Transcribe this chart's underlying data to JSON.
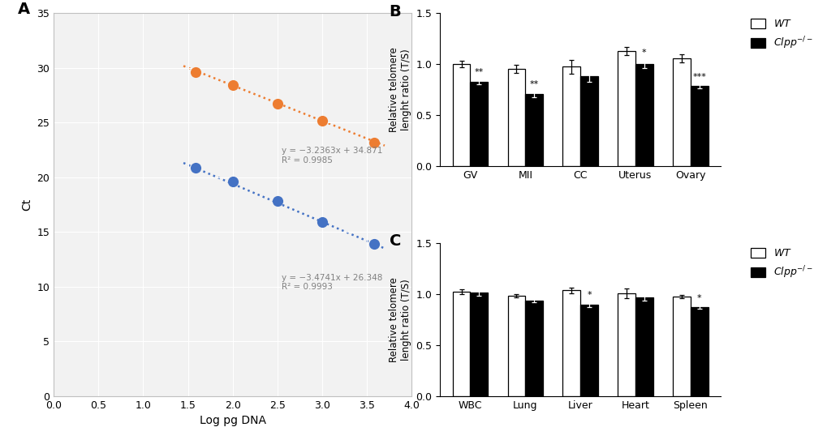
{
  "panel_A": {
    "blue_x": [
      1.585,
      2.0,
      2.5,
      3.0,
      3.585
    ],
    "blue_y": [
      20.85,
      19.6,
      17.8,
      15.9,
      13.9
    ],
    "orange_x": [
      1.585,
      2.0,
      2.5,
      3.0,
      3.585
    ],
    "orange_y": [
      29.65,
      28.45,
      26.7,
      25.2,
      23.2
    ],
    "blue_color": "#4472C4",
    "orange_color": "#ED7D31",
    "blue_eq": "y = −3.4741x + 26.348",
    "blue_r2": "R² = 0.9993",
    "orange_eq": "y = −3.2363x + 34.871",
    "orange_r2": "R² = 0.9985",
    "xlabel": "Log pg DNA",
    "ylabel": "Ct",
    "xlim": [
      0,
      4
    ],
    "ylim": [
      0,
      35
    ],
    "xticks": [
      0,
      0.5,
      1,
      1.5,
      2,
      2.5,
      3,
      3.5,
      4
    ],
    "yticks": [
      0,
      5,
      10,
      15,
      20,
      25,
      30,
      35
    ],
    "bg_color": "#f2f2f2",
    "grid_color": "white"
  },
  "panel_B": {
    "categories": [
      "GV",
      "MII",
      "CC",
      "Uterus",
      "Ovary"
    ],
    "wt_means": [
      1.0,
      0.955,
      0.975,
      1.13,
      1.055
    ],
    "wt_errs": [
      0.03,
      0.04,
      0.065,
      0.04,
      0.04
    ],
    "ko_means": [
      0.83,
      0.705,
      0.882,
      1.0,
      0.785
    ],
    "ko_errs": [
      0.025,
      0.03,
      0.055,
      0.04,
      0.022
    ],
    "sig_labels": [
      "**",
      "**",
      "",
      "*",
      "***"
    ],
    "ylabel": "Relative telomere\nlenght ratio (T/S)",
    "ylim": [
      0.0,
      1.5
    ],
    "yticks": [
      0.0,
      0.5,
      1.0,
      1.5
    ]
  },
  "panel_C": {
    "categories": [
      "WBC",
      "Lung",
      "Liver",
      "Heart",
      "Spleen"
    ],
    "wt_means": [
      1.02,
      0.984,
      1.035,
      1.005,
      0.975
    ],
    "wt_errs": [
      0.025,
      0.015,
      0.03,
      0.045,
      0.018
    ],
    "ko_means": [
      1.015,
      0.935,
      0.895,
      0.963,
      0.87
    ],
    "ko_errs": [
      0.03,
      0.018,
      0.022,
      0.032,
      0.018
    ],
    "sig_labels": [
      "",
      "",
      "*",
      "",
      "*"
    ],
    "ylabel": "Relative telomere\nlenght ratio (T/S)",
    "ylim": [
      0.0,
      1.5
    ],
    "yticks": [
      0.0,
      0.5,
      1.0,
      1.5
    ]
  },
  "bar_width": 0.32,
  "wt_color": "white",
  "ko_color": "black",
  "edge_color": "black",
  "background_color": "white"
}
